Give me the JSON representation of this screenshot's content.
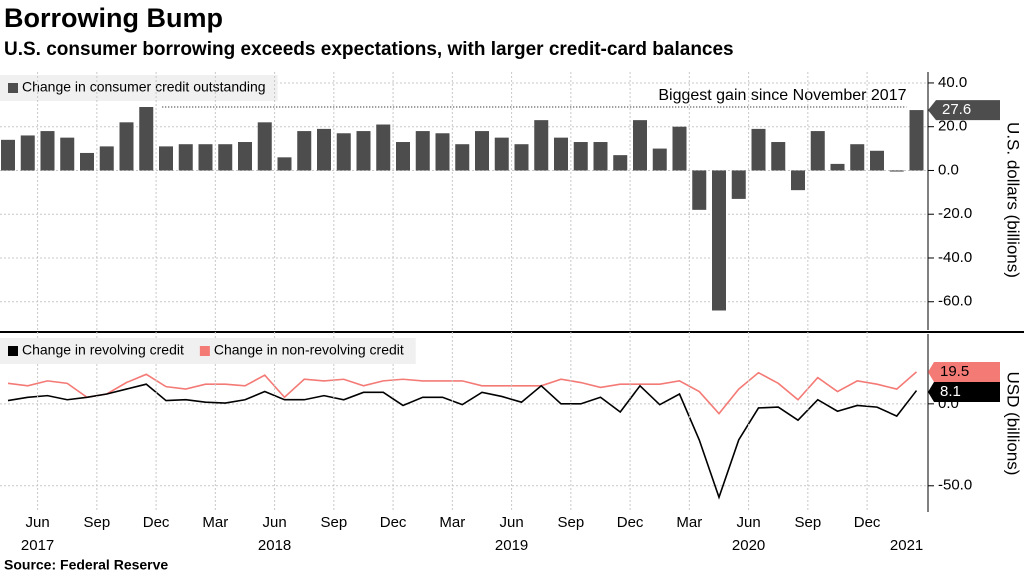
{
  "title": "Borrowing Bump",
  "subtitle": "U.S. consumer borrowing exceeds expectations, with larger credit-card balances",
  "source": "Source: Federal Reserve",
  "chart_data": [
    {
      "type": "bar",
      "ylabel": "U.S. dollars (billions)",
      "x": [
        "2017-04",
        "2017-05",
        "2017-06",
        "2017-07",
        "2017-08",
        "2017-09",
        "2017-10",
        "2017-11",
        "2017-12",
        "2018-01",
        "2018-02",
        "2018-03",
        "2018-04",
        "2018-05",
        "2018-06",
        "2018-07",
        "2018-08",
        "2018-09",
        "2018-10",
        "2018-11",
        "2018-12",
        "2019-01",
        "2019-02",
        "2019-03",
        "2019-04",
        "2019-05",
        "2019-06",
        "2019-07",
        "2019-08",
        "2019-09",
        "2019-10",
        "2019-11",
        "2019-12",
        "2020-01",
        "2020-02",
        "2020-03",
        "2020-04",
        "2020-05",
        "2020-06",
        "2020-07",
        "2020-08",
        "2020-09",
        "2020-10",
        "2020-11",
        "2020-12",
        "2021-01",
        "2021-02"
      ],
      "series": [
        {
          "name": "Change in consumer credit outstanding",
          "color": "#4d4d4d",
          "values": [
            14,
            16,
            18,
            15,
            8,
            11,
            22,
            29,
            11,
            12,
            12,
            12,
            13,
            22,
            6,
            18,
            19,
            17,
            18,
            21,
            13,
            18,
            17,
            12,
            18,
            15,
            12,
            23,
            15,
            13,
            13,
            7,
            23,
            10,
            20,
            -18,
            -64,
            -13,
            19,
            13,
            -9,
            18,
            3,
            12,
            9,
            -0.5,
            27.6
          ]
        }
      ],
      "annotation": "Biggest gain since November 2017",
      "ylim": [
        -72,
        45
      ],
      "yticks": [
        {
          "value": 40,
          "label": "40.0"
        },
        {
          "value": 20,
          "label": "20.0"
        },
        {
          "value": 0,
          "label": "0.0"
        },
        {
          "value": -20,
          "label": "-20.0"
        },
        {
          "value": -40,
          "label": "-40.0"
        },
        {
          "value": -60,
          "label": "-60.0"
        }
      ],
      "grid": true
    },
    {
      "type": "line",
      "ylabel": "USD (billions)",
      "x": [
        "2017-04",
        "2017-05",
        "2017-06",
        "2017-07",
        "2017-08",
        "2017-09",
        "2017-10",
        "2017-11",
        "2017-12",
        "2018-01",
        "2018-02",
        "2018-03",
        "2018-04",
        "2018-05",
        "2018-06",
        "2018-07",
        "2018-08",
        "2018-09",
        "2018-10",
        "2018-11",
        "2018-12",
        "2019-01",
        "2019-02",
        "2019-03",
        "2019-04",
        "2019-05",
        "2019-06",
        "2019-07",
        "2019-08",
        "2019-09",
        "2019-10",
        "2019-11",
        "2019-12",
        "2020-01",
        "2020-02",
        "2020-03",
        "2020-04",
        "2020-05",
        "2020-06",
        "2020-07",
        "2020-08",
        "2020-09",
        "2020-10",
        "2020-11",
        "2020-12",
        "2021-01",
        "2021-02"
      ],
      "series": [
        {
          "name": "Change in revolving credit",
          "color": "#000000",
          "values": [
            2,
            4,
            5,
            2.5,
            4,
            6,
            9,
            12,
            2,
            2.5,
            1,
            0.5,
            2.5,
            7.5,
            2.5,
            2.5,
            5,
            2.5,
            7,
            7,
            -1,
            4,
            4,
            -0.5,
            7,
            4.5,
            1,
            11,
            0,
            0,
            4,
            -5,
            11,
            -0.5,
            6,
            -22,
            -57,
            -22,
            -2.5,
            -2,
            -10,
            2.5,
            -4.5,
            -1,
            -2,
            -7.5,
            8.1
          ]
        },
        {
          "name": "Change in non-revolving credit",
          "color": "#f47a76",
          "values": [
            12.5,
            11,
            14,
            12.5,
            4,
            6,
            13,
            18,
            10.5,
            9,
            12,
            12,
            11,
            17.5,
            4,
            15,
            14,
            15,
            11,
            14,
            15,
            14,
            14,
            14,
            11,
            11,
            11,
            11,
            15,
            13,
            10,
            12,
            12,
            12,
            14,
            7.5,
            -6,
            9,
            19,
            12.5,
            2.5,
            16,
            7.5,
            14,
            12,
            9,
            19.5
          ]
        }
      ],
      "ylim": [
        -66,
        42
      ],
      "yticks": [
        {
          "value": 0,
          "label": "0.0"
        },
        {
          "value": -50,
          "label": "-50.0"
        }
      ],
      "xticks": [
        {
          "value": "2017-06",
          "label": "Jun"
        },
        {
          "value": "2017-09",
          "label": "Sep"
        },
        {
          "value": "2017-12",
          "label": "Dec"
        },
        {
          "value": "2018-03",
          "label": "Mar"
        },
        {
          "value": "2018-06",
          "label": "Jun"
        },
        {
          "value": "2018-09",
          "label": "Sep"
        },
        {
          "value": "2018-12",
          "label": "Dec"
        },
        {
          "value": "2019-03",
          "label": "Mar"
        },
        {
          "value": "2019-06",
          "label": "Jun"
        },
        {
          "value": "2019-09",
          "label": "Sep"
        },
        {
          "value": "2019-12",
          "label": "Dec"
        },
        {
          "value": "2020-03",
          "label": "Mar"
        },
        {
          "value": "2020-06",
          "label": "Jun"
        },
        {
          "value": "2020-09",
          "label": "Sep"
        },
        {
          "value": "2020-12",
          "label": "Dec"
        }
      ],
      "xyears": [
        {
          "value": "2017-06",
          "label": "2017"
        },
        {
          "value": "2018-06",
          "label": "2018"
        },
        {
          "value": "2019-06",
          "label": "2019"
        },
        {
          "value": "2020-06",
          "label": "2020"
        },
        {
          "value": "2021-02",
          "label": "2021"
        }
      ],
      "grid": true
    }
  ]
}
